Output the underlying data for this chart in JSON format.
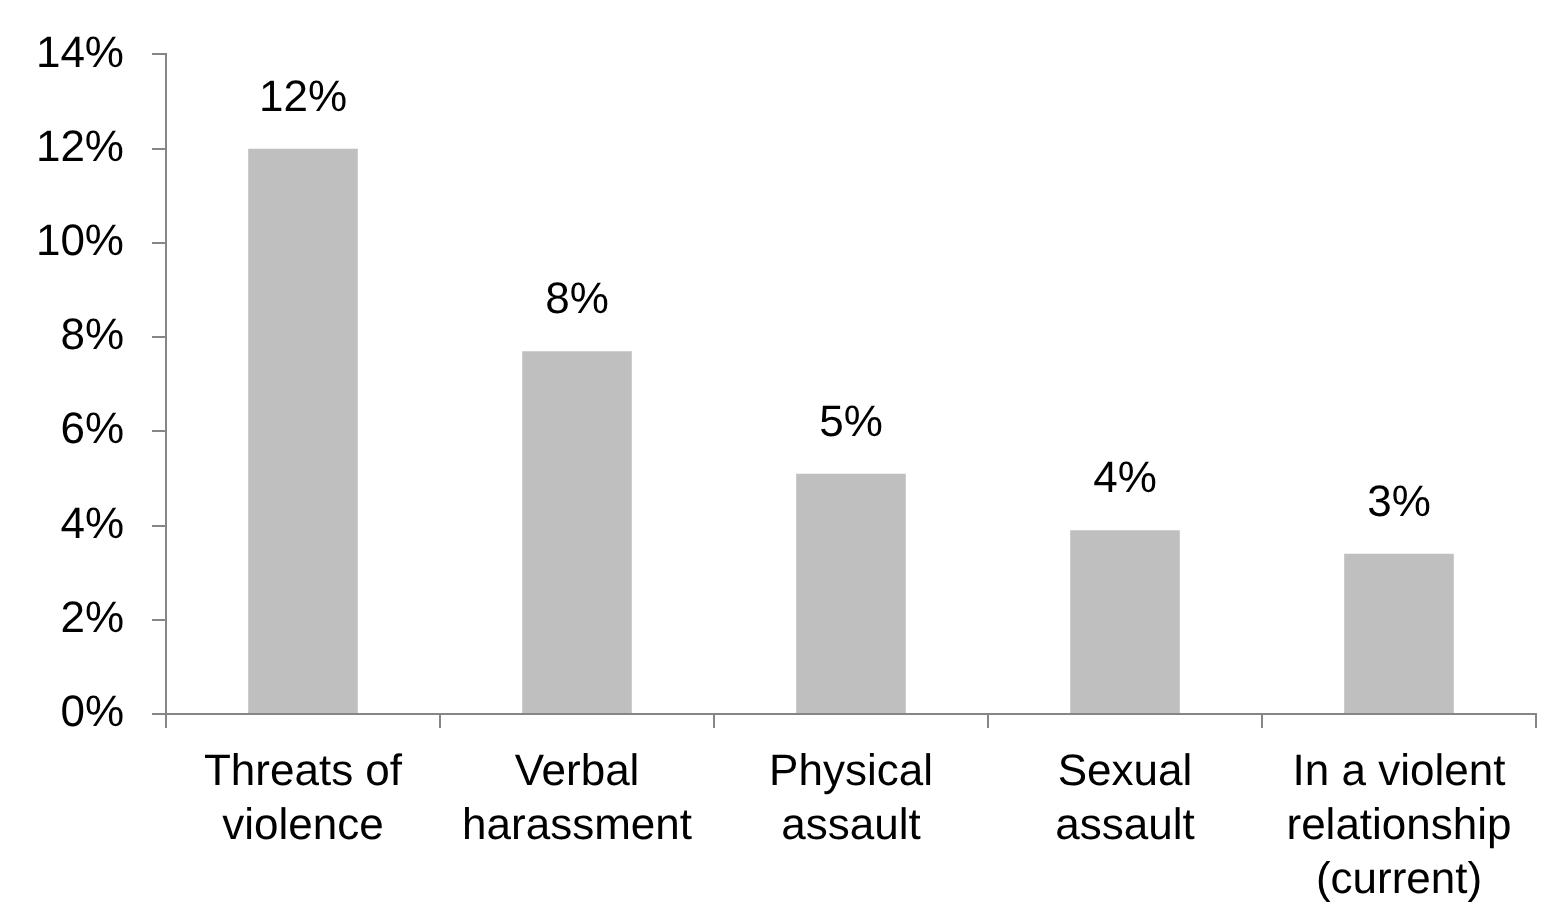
{
  "chart_data": {
    "type": "bar",
    "categories": [
      "Threats of violence",
      "Verbal harassment",
      "Physical assault",
      "Sexual assault",
      "In a violent relationship (current)"
    ],
    "values": [
      12,
      7.7,
      5.1,
      3.9,
      3.4
    ],
    "value_labels": [
      "12%",
      "8%",
      "5%",
      "4%",
      "3%"
    ],
    "color": "#bfbfbf",
    "ylim": [
      0,
      14
    ],
    "yticks": [
      {
        "value": 0,
        "label": "0%"
      },
      {
        "value": 2,
        "label": "2%"
      },
      {
        "value": 4,
        "label": "4%"
      },
      {
        "value": 6,
        "label": "6%"
      },
      {
        "value": 8,
        "label": "8%"
      },
      {
        "value": 10,
        "label": "10%"
      },
      {
        "value": 12,
        "label": "12%"
      },
      {
        "value": 14,
        "label": "14%"
      }
    ],
    "grid": false,
    "legend": false
  }
}
